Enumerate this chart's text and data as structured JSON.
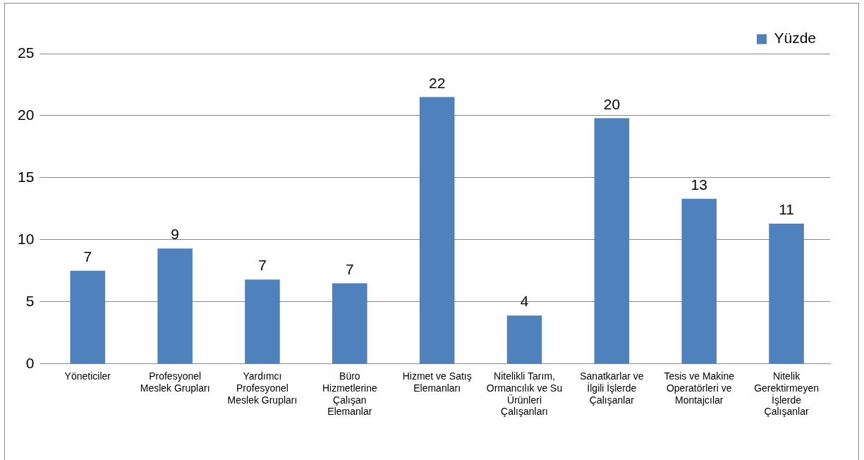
{
  "chart_data": {
    "type": "bar",
    "categories": [
      "Yöneticiler",
      "Profesyonel Meslek Grupları",
      "Yardımcı Profesyonel Meslek Grupları",
      "Büro Hizmetlerine Çalışan Elemanlar",
      "Hizmet ve Satış Elemanları",
      "Nitelikli Tarım, Ormancılık ve Su Ürünleri Çalışanları",
      "Sanatkarlar ve İlgili İşlerde Çalışanlar",
      "Tesis ve Makine Operatörleri ve Montajcılar",
      "Nitelik Gerektirmeyen İşlerde Çalışanlar"
    ],
    "series": [
      {
        "name": "Yüzde",
        "color": "#4f81bd",
        "values": [
          7.5,
          9.3,
          6.8,
          6.5,
          21.5,
          3.9,
          19.8,
          13.3,
          11.3
        ],
        "value_labels": [
          "7",
          "9",
          "7",
          "7",
          "22",
          "4",
          "20",
          "13",
          "11"
        ]
      }
    ],
    "ylim": [
      0,
      25
    ],
    "yticks": [
      0,
      5,
      10,
      15,
      20,
      25
    ],
    "grid": "y",
    "legend": "top right"
  }
}
